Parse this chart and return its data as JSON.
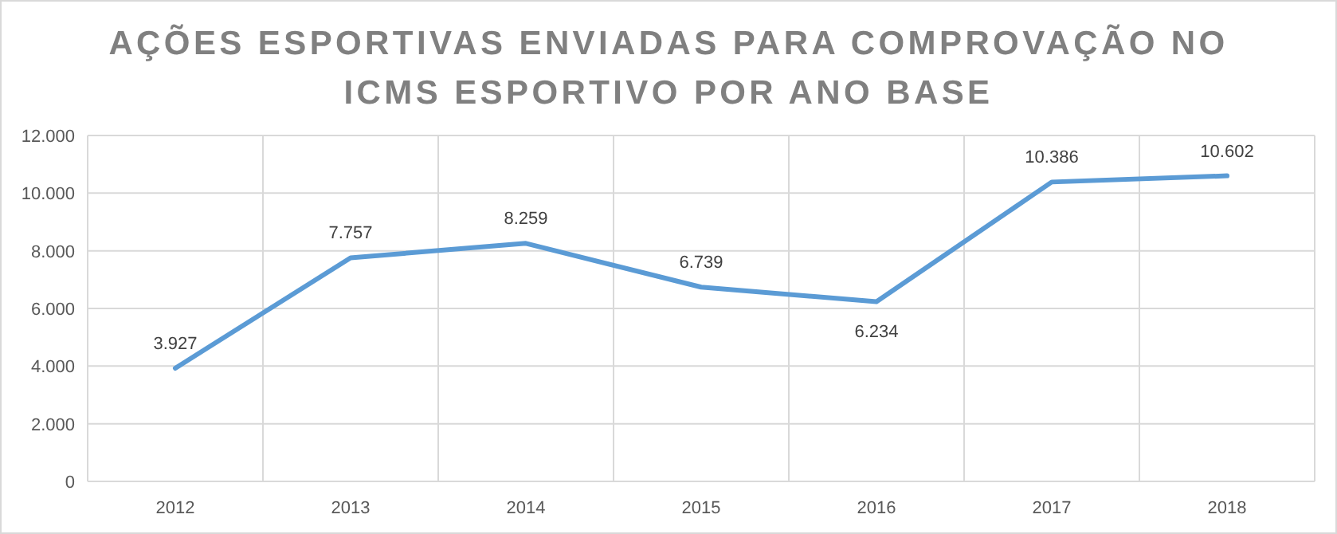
{
  "chart_data": {
    "type": "line",
    "title": "AÇÕES ESPORTIVAS ENVIADAS PARA COMPROVAÇÃO NO ICMS ESPORTIVO POR ANO BASE",
    "categories": [
      "2012",
      "2013",
      "2014",
      "2015",
      "2016",
      "2017",
      "2018"
    ],
    "series": [
      {
        "color": "#5b9bd5",
        "values": [
          3927,
          7757,
          8259,
          6739,
          6234,
          10386,
          10602
        ],
        "value_labels": [
          "3.927",
          "7.757",
          "8.259",
          "6.739",
          "6.234",
          "10.386",
          "10.602"
        ]
      }
    ],
    "ylim": [
      0,
      12000
    ],
    "yticks": [
      {
        "value": 0,
        "label": "0"
      },
      {
        "value": 2000,
        "label": "2.000"
      },
      {
        "value": 4000,
        "label": "4.000"
      },
      {
        "value": 6000,
        "label": "6.000"
      },
      {
        "value": 8000,
        "label": "8.000"
      },
      {
        "value": 10000,
        "label": "10.000"
      },
      {
        "value": 12000,
        "label": "12.000"
      }
    ],
    "grid": true,
    "marker": "none",
    "line_style": "solid"
  }
}
